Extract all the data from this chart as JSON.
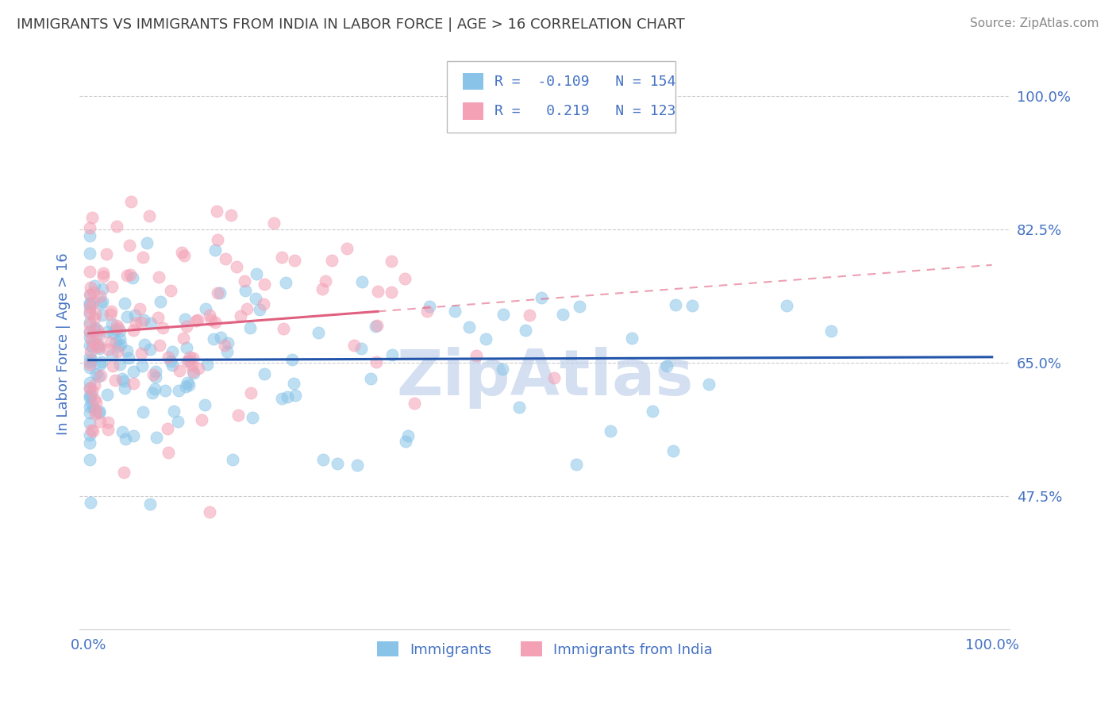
{
  "title": "IMMIGRANTS VS IMMIGRANTS FROM INDIA IN LABOR FORCE | AGE > 16 CORRELATION CHART",
  "source": "Source: ZipAtlas.com",
  "ylabel": "In Labor Force | Age > 16",
  "y_ticks": [
    0.475,
    0.65,
    0.825,
    1.0
  ],
  "y_tick_labels": [
    "47.5%",
    "65.0%",
    "82.5%",
    "100.0%"
  ],
  "y_min": 0.3,
  "y_max": 1.05,
  "x_min": -0.01,
  "x_max": 1.02,
  "blue_R": -0.109,
  "blue_N": 154,
  "pink_R": 0.219,
  "pink_N": 123,
  "blue_color": "#89c4e8",
  "pink_color": "#f4a0b5",
  "blue_line_color": "#2255aa",
  "pink_line_color": "#e06080",
  "background_color": "#ffffff",
  "grid_color": "#cccccc",
  "watermark_text": "ZipAtlas",
  "watermark_color": "#b8cce8",
  "title_color": "#404040",
  "tick_color": "#4472c4",
  "legend_text_color": "#4472c4",
  "source_color": "#888888"
}
